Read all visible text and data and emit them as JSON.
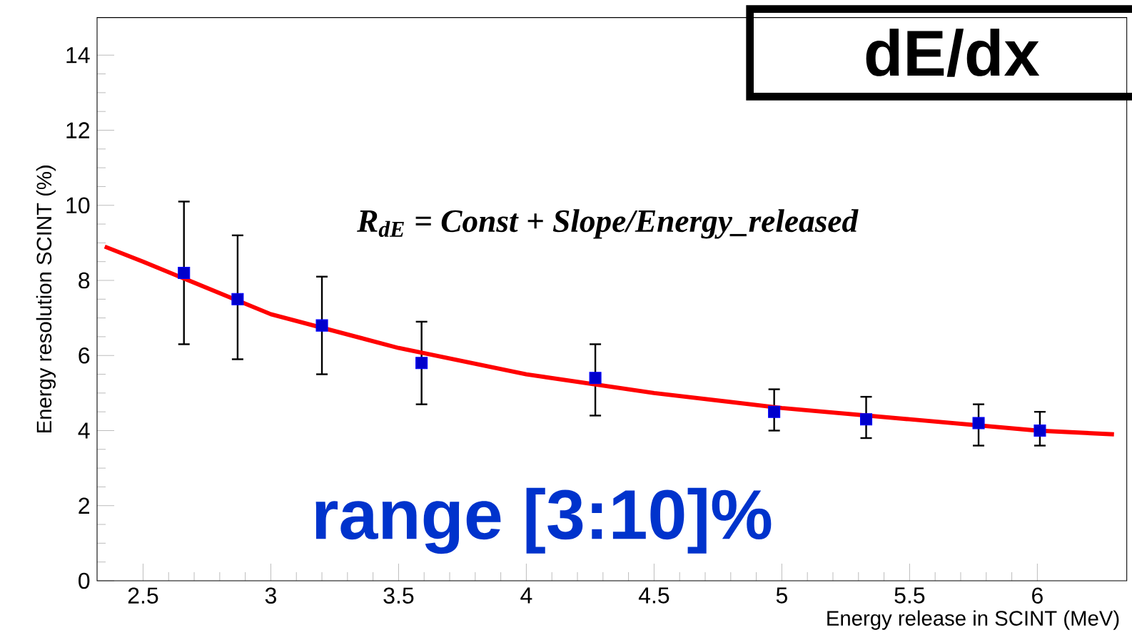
{
  "chart_data": {
    "type": "scatter",
    "title": "dE/dx",
    "xlabel": "Energy release in SCINT (MeV)",
    "ylabel": "Energy resolution SCINT (%)",
    "annotations": [
      "*R*$_{dE}$ = Const + Slope/Energy_released",
      "range [3:10]%"
    ],
    "xlim": [
      2.32,
      6.35
    ],
    "ylim": [
      0,
      15
    ],
    "xticks": [
      2.5,
      3,
      3.5,
      4,
      4.5,
      5,
      5.5,
      6
    ],
    "yticks": [
      0,
      2,
      4,
      6,
      8,
      10,
      12,
      14
    ],
    "grid": false,
    "marker": "square",
    "series": [
      {
        "color": "#0000ff",
        "x": [
          2.66,
          2.87,
          3.2,
          3.59,
          4.27,
          4.97,
          5.33,
          5.77,
          6.01
        ],
        "values": [
          8.2,
          7.5,
          6.8,
          5.8,
          5.4,
          4.5,
          4.3,
          4.2,
          4.0
        ],
        "errors": [
          [
            6.3,
            10.1
          ],
          [
            5.9,
            9.2
          ],
          [
            5.5,
            8.1
          ],
          [
            4.7,
            6.9
          ],
          [
            4.4,
            6.3
          ],
          [
            4.0,
            5.1
          ],
          [
            3.8,
            4.9
          ],
          [
            3.6,
            4.7
          ],
          [
            3.6,
            4.5
          ]
        ]
      },
      {
        "type": "line",
        "color": "#ff0000",
        "marker": "none",
        "line_style": "solid",
        "x": [
          2.35,
          2.5,
          3,
          3.5,
          4,
          4.5,
          5,
          5.5,
          6,
          6.3
        ],
        "values": [
          8.9,
          8.5,
          7.1,
          6.2,
          5.5,
          5.0,
          4.6,
          4.3,
          4.0,
          3.9
        ]
      }
    ]
  }
}
